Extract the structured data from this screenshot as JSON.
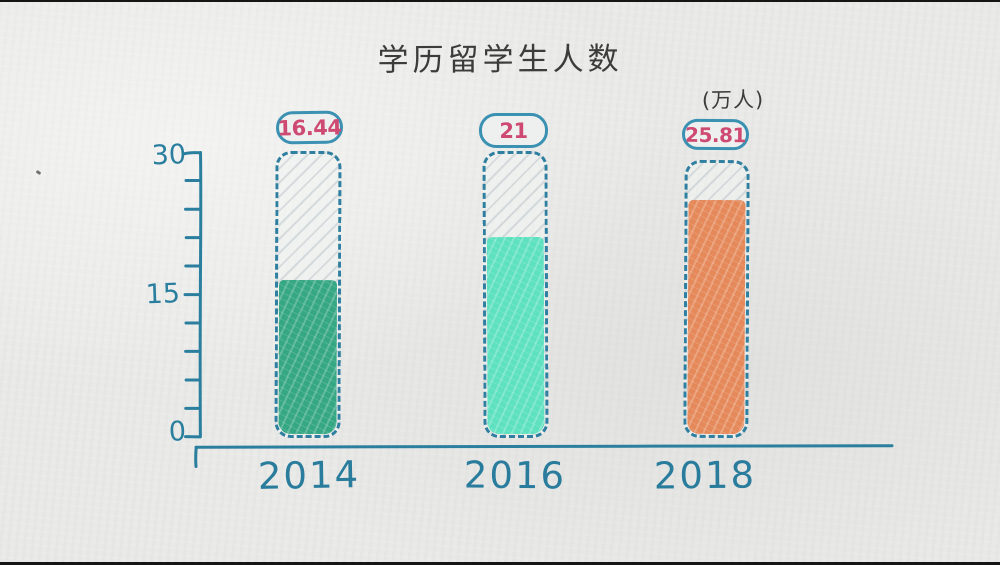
{
  "chart_data": {
    "type": "bar",
    "title": "学历留学生人数",
    "unit_label": "(万人)",
    "categories": [
      "2014",
      "2016",
      "2018"
    ],
    "values": [
      16.44,
      21,
      25.81
    ],
    "value_labels": [
      "16.44",
      "21",
      "25.81"
    ],
    "ylim": [
      0,
      30
    ],
    "ytick_labels": [
      "30",
      "15",
      "0"
    ],
    "minor_tick_step": 3,
    "grid": false,
    "legend": "none",
    "style": "hand-drawn filled tube bars with hatched empty area",
    "bar_fill_colors": [
      "#35a783",
      "#5ee1bf",
      "#e5895a"
    ],
    "axis_color": "#2b7f9e",
    "value_text_color": "#ce4a72",
    "badge_border_color": "#3b91b2",
    "bar_border_color": "#2f7fa0",
    "background_color": "#e9e9e7"
  }
}
